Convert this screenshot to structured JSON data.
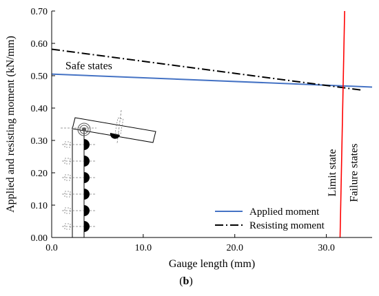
{
  "chart_data": {
    "type": "line",
    "xlabel": "Gauge length (mm)",
    "ylabel": "Applied and resisting moment (kN/mm)",
    "xlim": [
      0,
      35
    ],
    "ylim": [
      0,
      0.7
    ],
    "x_ticks": [
      0,
      10,
      20,
      30
    ],
    "x_tick_labels": [
      "0.0",
      "10.0",
      "20.0",
      "30.0"
    ],
    "y_ticks": [
      0,
      0.1,
      0.2,
      0.3,
      0.4,
      0.5,
      0.6,
      0.7
    ],
    "y_tick_labels": [
      "0.00",
      "0.10",
      "0.20",
      "0.30",
      "0.40",
      "0.50",
      "0.60",
      "0.70"
    ],
    "grid": false,
    "legend_position": "bottom-right",
    "series": [
      {
        "name": "Applied moment",
        "color": "#4472c4",
        "style": "solid",
        "x": [
          0,
          35
        ],
        "y": [
          0.505,
          0.465
        ]
      },
      {
        "name": "Resisting moment",
        "color": "#000000",
        "style": "dash-dot",
        "x": [
          0,
          34
        ],
        "y": [
          0.582,
          0.455
        ]
      }
    ],
    "limit_line": {
      "color": "#ff0000",
      "x": [
        31.5,
        32.0
      ],
      "y": [
        0,
        0.7
      ]
    },
    "annotations": [
      {
        "id": "safe",
        "text": "Safe states",
        "x": 1.5,
        "y": 0.52
      },
      {
        "id": "limit",
        "text": "Limit state",
        "x": 31.0,
        "y": 0.2
      },
      {
        "id": "failure",
        "text": "Failure states",
        "x": 33.4,
        "y": 0.2
      }
    ],
    "panel_label_bold": "b",
    "panel_label_open": "(",
    "panel_label_close": ")"
  }
}
